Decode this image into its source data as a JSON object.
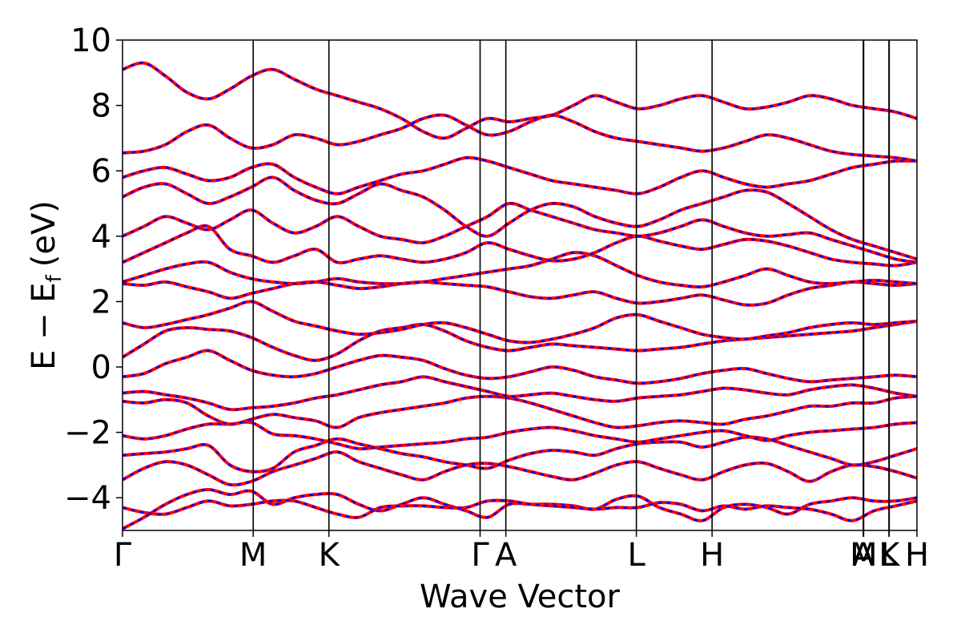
{
  "chart_data": {
    "type": "line",
    "title": "",
    "xlabel": "Wave Vector",
    "ylabel": "E − E",
    "ylabel_subscript": "f",
    "ylabel_unit": "(eV)",
    "ylim": [
      -5,
      10
    ],
    "y_ticks": [
      {
        "value": -4,
        "label": "−4"
      },
      {
        "value": -2,
        "label": "−2"
      },
      {
        "value": 0,
        "label": "0"
      },
      {
        "value": 2,
        "label": "2"
      },
      {
        "value": 4,
        "label": "4"
      },
      {
        "value": 6,
        "label": "6"
      },
      {
        "value": 8,
        "label": "8"
      },
      {
        "value": 10,
        "label": "10"
      }
    ],
    "xlim": [
      0,
      1
    ],
    "k_points": [
      {
        "label": "Γ",
        "x": 0.0
      },
      {
        "label": "M",
        "x": 0.1645
      },
      {
        "label": "K",
        "x": 0.2598
      },
      {
        "label": "Γ",
        "x": 0.4501
      },
      {
        "label": "A",
        "x": 0.4825
      },
      {
        "label": "L",
        "x": 0.6468
      },
      {
        "label": "H",
        "x": 0.7421
      },
      {
        "label": "A",
        "x": 0.9324
      },
      {
        "label": "M",
        "x": 0.9329
      },
      {
        "label": "L",
        "x": 0.9647
      },
      {
        "label": "K",
        "x": 0.9651
      },
      {
        "label": "H",
        "x": 1.0
      }
    ],
    "grid": false,
    "legend": "none",
    "series": [
      {
        "style": "solid",
        "color": "#ff0000"
      },
      {
        "style": "dashed",
        "color": "#0000ff"
      }
    ],
    "bands": [
      [
        -4.95,
        -4.6,
        -4.2,
        -3.9,
        -3.75,
        -3.9,
        -3.8,
        -4.2,
        -4.0,
        -3.9,
        -3.9,
        -4.2,
        -4.4,
        -4.2,
        -4.0,
        -4.2,
        -4.4,
        -4.6,
        -4.2,
        -4.2,
        -4.2,
        -4.25,
        -4.35,
        -4.05,
        -3.95,
        -4.3,
        -4.5,
        -4.7,
        -4.3,
        -4.2,
        -4.3,
        -4.5,
        -4.2,
        -4.1,
        -4.0,
        -4.1,
        -4.1,
        -4.0
      ],
      [
        -4.3,
        -4.45,
        -4.5,
        -4.3,
        -4.1,
        -4.25,
        -4.2,
        -4.1,
        -4.1,
        -4.3,
        -4.5,
        -4.6,
        -4.3,
        -4.25,
        -4.25,
        -4.3,
        -4.3,
        -4.1,
        -4.1,
        -4.2,
        -4.25,
        -4.3,
        -4.35,
        -4.3,
        -4.3,
        -4.15,
        -4.2,
        -4.4,
        -4.25,
        -4.35,
        -4.25,
        -4.3,
        -4.35,
        -4.5,
        -4.7,
        -4.4,
        -4.25,
        -4.1
      ],
      [
        -3.45,
        -3.1,
        -2.9,
        -3.0,
        -3.3,
        -3.6,
        -3.5,
        -3.2,
        -3.0,
        -2.8,
        -2.6,
        -2.9,
        -3.1,
        -3.3,
        -3.45,
        -3.2,
        -3.0,
        -2.95,
        -3.05,
        -3.2,
        -3.35,
        -3.45,
        -3.25,
        -3.0,
        -2.9,
        -3.1,
        -3.3,
        -3.45,
        -3.2,
        -3.0,
        -2.95,
        -3.2,
        -3.5,
        -3.2,
        -3.0,
        -3.05,
        -3.2,
        -3.4
      ],
      [
        -2.7,
        -2.65,
        -2.6,
        -2.5,
        -2.4,
        -3.0,
        -3.2,
        -3.1,
        -2.6,
        -2.4,
        -2.2,
        -2.35,
        -2.5,
        -2.65,
        -2.75,
        -2.9,
        -3.0,
        -3.1,
        -2.85,
        -2.65,
        -2.55,
        -2.6,
        -2.7,
        -2.5,
        -2.35,
        -2.3,
        -2.3,
        -2.45,
        -2.3,
        -2.15,
        -2.2,
        -2.4,
        -2.6,
        -2.8,
        -3.0,
        -2.9,
        -2.7,
        -2.5
      ],
      [
        -2.1,
        -2.2,
        -2.1,
        -1.9,
        -1.75,
        -1.75,
        -1.7,
        -2.05,
        -2.1,
        -2.2,
        -2.35,
        -2.5,
        -2.45,
        -2.4,
        -2.35,
        -2.3,
        -2.2,
        -2.15,
        -2.0,
        -1.9,
        -1.85,
        -1.95,
        -2.1,
        -2.2,
        -2.3,
        -2.2,
        -2.1,
        -2.0,
        -1.95,
        -2.1,
        -2.25,
        -2.1,
        -2.0,
        -1.95,
        -1.9,
        -1.85,
        -1.75,
        -1.7
      ],
      [
        -1.05,
        -1.1,
        -1.0,
        -1.1,
        -1.5,
        -1.75,
        -1.6,
        -1.45,
        -1.55,
        -1.65,
        -1.85,
        -1.55,
        -1.4,
        -1.3,
        -1.2,
        -1.1,
        -0.95,
        -0.9,
        -0.95,
        -1.1,
        -1.3,
        -1.5,
        -1.7,
        -1.85,
        -1.8,
        -1.7,
        -1.65,
        -1.7,
        -1.75,
        -1.6,
        -1.5,
        -1.35,
        -1.2,
        -1.2,
        -1.1,
        -1.1,
        -0.95,
        -0.9
      ],
      [
        -0.8,
        -0.75,
        -0.85,
        -0.95,
        -1.1,
        -1.3,
        -1.25,
        -1.2,
        -1.1,
        -0.95,
        -0.85,
        -0.7,
        -0.55,
        -0.45,
        -0.3,
        -0.45,
        -0.6,
        -0.75,
        -0.9,
        -0.85,
        -0.8,
        -0.9,
        -1.0,
        -1.05,
        -0.95,
        -0.9,
        -0.85,
        -0.75,
        -0.65,
        -0.7,
        -0.8,
        -0.85,
        -0.7,
        -0.6,
        -0.55,
        -0.65,
        -0.8,
        -0.9
      ],
      [
        -0.3,
        -0.2,
        0.1,
        0.3,
        0.5,
        0.2,
        -0.1,
        -0.25,
        -0.3,
        -0.2,
        0.0,
        0.2,
        0.35,
        0.3,
        0.2,
        -0.05,
        -0.25,
        -0.35,
        -0.3,
        -0.15,
        0.0,
        -0.1,
        -0.3,
        -0.4,
        -0.5,
        -0.45,
        -0.35,
        -0.2,
        -0.1,
        -0.05,
        -0.2,
        -0.35,
        -0.45,
        -0.4,
        -0.35,
        -0.3,
        -0.25,
        -0.3
      ],
      [
        0.3,
        0.7,
        1.1,
        1.2,
        1.15,
        1.1,
        0.9,
        0.6,
        0.35,
        0.2,
        0.4,
        0.8,
        1.1,
        1.2,
        1.3,
        1.1,
        0.8,
        0.6,
        0.5,
        0.6,
        0.7,
        0.65,
        0.6,
        0.55,
        0.5,
        0.55,
        0.6,
        0.7,
        0.8,
        0.85,
        0.9,
        0.95,
        1.0,
        1.05,
        1.1,
        1.2,
        1.3,
        1.4
      ],
      [
        1.35,
        1.2,
        1.3,
        1.45,
        1.6,
        1.8,
        2.0,
        1.7,
        1.4,
        1.25,
        1.1,
        1.0,
        1.05,
        1.15,
        1.3,
        1.35,
        1.2,
        1.0,
        0.8,
        0.75,
        0.85,
        1.0,
        1.2,
        1.5,
        1.6,
        1.4,
        1.2,
        1.0,
        0.9,
        0.85,
        0.95,
        1.05,
        1.2,
        1.3,
        1.35,
        1.3,
        1.35,
        1.4
      ],
      [
        2.55,
        2.5,
        2.6,
        2.45,
        2.3,
        2.1,
        2.25,
        2.4,
        2.55,
        2.6,
        2.5,
        2.4,
        2.45,
        2.55,
        2.6,
        2.55,
        2.5,
        2.45,
        2.3,
        2.15,
        2.1,
        2.2,
        2.3,
        2.1,
        1.95,
        2.0,
        2.1,
        2.2,
        2.05,
        1.9,
        1.95,
        2.2,
        2.4,
        2.5,
        2.6,
        2.55,
        2.5,
        2.55
      ],
      [
        2.6,
        2.8,
        3.0,
        3.15,
        3.2,
        2.9,
        2.7,
        2.6,
        2.55,
        2.6,
        2.7,
        2.6,
        2.55,
        2.55,
        2.6,
        2.7,
        2.8,
        2.9,
        3.0,
        3.1,
        3.3,
        3.5,
        3.4,
        3.1,
        2.8,
        2.6,
        2.5,
        2.45,
        2.6,
        2.8,
        3.0,
        2.8,
        2.6,
        2.55,
        2.6,
        2.65,
        2.6,
        2.55
      ],
      [
        3.2,
        3.5,
        3.8,
        4.1,
        4.3,
        3.6,
        3.4,
        3.2,
        3.4,
        3.6,
        3.2,
        3.3,
        3.4,
        3.3,
        3.2,
        3.3,
        3.5,
        3.8,
        3.6,
        3.4,
        3.25,
        3.3,
        3.5,
        3.8,
        4.0,
        3.85,
        3.7,
        3.6,
        3.75,
        3.9,
        3.85,
        3.7,
        3.5,
        3.3,
        3.2,
        3.15,
        3.1,
        3.2
      ],
      [
        4.0,
        4.3,
        4.6,
        4.4,
        4.2,
        4.5,
        4.8,
        4.4,
        4.1,
        4.3,
        4.6,
        4.3,
        4.0,
        3.9,
        3.8,
        4.0,
        4.3,
        4.6,
        5.0,
        4.8,
        4.6,
        4.4,
        4.2,
        4.1,
        4.0,
        4.1,
        4.3,
        4.5,
        4.3,
        4.1,
        4.0,
        4.05,
        4.1,
        3.9,
        3.7,
        3.5,
        3.3,
        3.2
      ],
      [
        5.2,
        5.5,
        5.6,
        5.3,
        5.0,
        5.2,
        5.5,
        5.8,
        5.4,
        5.1,
        5.0,
        5.3,
        5.6,
        5.4,
        5.2,
        4.8,
        4.3,
        4.0,
        4.4,
        4.8,
        5.0,
        4.9,
        4.6,
        4.4,
        4.3,
        4.5,
        4.8,
        5.0,
        5.2,
        5.4,
        5.35,
        5.0,
        4.6,
        4.2,
        3.9,
        3.7,
        3.5,
        3.3
      ],
      [
        5.8,
        6.0,
        6.1,
        5.9,
        5.7,
        5.8,
        6.1,
        6.2,
        5.8,
        5.5,
        5.3,
        5.5,
        5.7,
        5.9,
        6.0,
        6.2,
        6.4,
        6.3,
        6.1,
        5.9,
        5.7,
        5.6,
        5.5,
        5.4,
        5.3,
        5.5,
        5.8,
        6.0,
        5.8,
        5.6,
        5.5,
        5.6,
        5.7,
        5.9,
        6.1,
        6.2,
        6.3,
        6.3
      ],
      [
        6.55,
        6.6,
        6.8,
        7.2,
        7.4,
        7.0,
        6.7,
        6.8,
        7.1,
        7.0,
        6.8,
        6.9,
        7.1,
        7.3,
        7.6,
        7.7,
        7.4,
        7.1,
        7.2,
        7.5,
        7.7,
        7.5,
        7.2,
        7.0,
        6.9,
        6.8,
        6.7,
        6.6,
        6.7,
        6.9,
        7.1,
        7.0,
        6.8,
        6.6,
        6.5,
        6.45,
        6.4,
        6.3
      ],
      [
        9.1,
        9.3,
        8.9,
        8.4,
        8.2,
        8.5,
        8.9,
        9.1,
        8.8,
        8.5,
        8.3,
        8.1,
        7.9,
        7.6,
        7.2,
        7.0,
        7.3,
        7.6,
        7.5,
        7.6,
        7.7,
        8.0,
        8.3,
        8.1,
        7.9,
        8.0,
        8.2,
        8.3,
        8.1,
        7.9,
        7.95,
        8.1,
        8.3,
        8.2,
        8.0,
        7.9,
        7.8,
        7.6
      ]
    ]
  }
}
